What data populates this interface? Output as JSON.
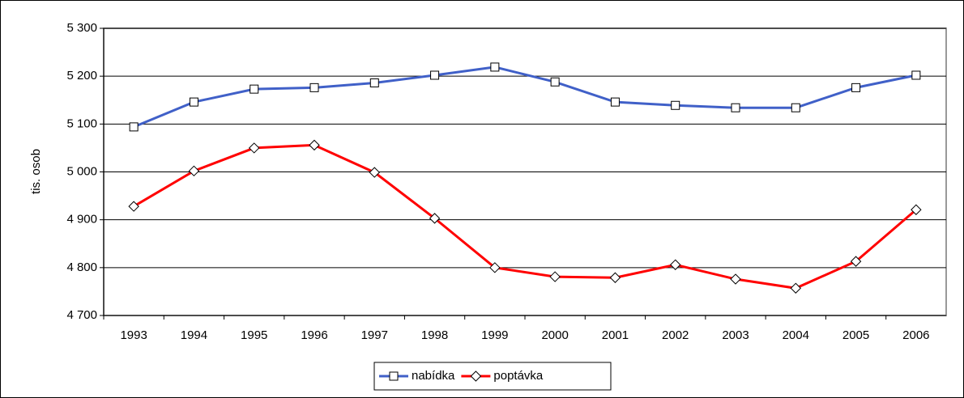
{
  "chart_data": {
    "type": "line",
    "y_label": "tis. osob",
    "categories": [
      "1993",
      "1994",
      "1995",
      "1996",
      "1997",
      "1998",
      "1999",
      "2000",
      "2001",
      "2002",
      "2003",
      "2004",
      "2005",
      "2006"
    ],
    "series": [
      {
        "name": "nabídka",
        "color": "#4060c8",
        "marker": "square",
        "values": [
          5094,
          5146,
          5173,
          5176,
          5186,
          5202,
          5219,
          5188,
          5146,
          5139,
          5134,
          5134,
          5176,
          5202
        ]
      },
      {
        "name": "poptávka",
        "color": "#ff0000",
        "marker": "diamond",
        "values": [
          4928,
          5002,
          5050,
          5056,
          4999,
          4903,
          4800,
          4781,
          4779,
          4806,
          4776,
          4757,
          4813,
          4921
        ]
      }
    ],
    "ylim": [
      4700,
      5300
    ],
    "yticks": [
      {
        "value": 4700,
        "label": "4 700"
      },
      {
        "value": 4800,
        "label": "4 800"
      },
      {
        "value": 4900,
        "label": "4 900"
      },
      {
        "value": 5000,
        "label": "5 000"
      },
      {
        "value": 5100,
        "label": "5 100"
      },
      {
        "value": 5200,
        "label": "5 200"
      },
      {
        "value": 5300,
        "label": "5 300"
      }
    ],
    "grid": true,
    "legend": "bottom"
  }
}
